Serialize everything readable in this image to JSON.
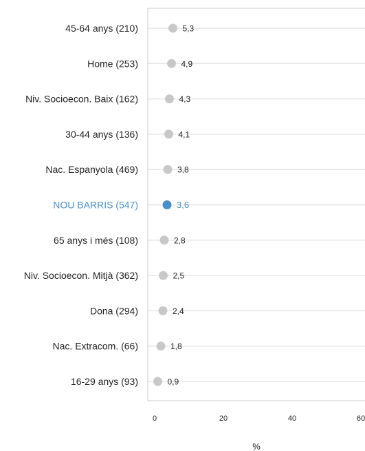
{
  "chart_data": {
    "type": "scatter",
    "title": "",
    "xlabel": "%",
    "xlim": [
      -2,
      62
    ],
    "xticks": [
      "0",
      "20",
      "40",
      "60"
    ],
    "xtick_values": [
      0,
      20,
      40,
      60
    ],
    "grid": "horizontal rows",
    "colors": {
      "default": "#c8c8c8",
      "highlight": "#4a90c8",
      "frame": "#cccccc",
      "row_line": "#e6e6e6"
    },
    "points": [
      {
        "label": "45-64 anys (210)",
        "value": 5.3,
        "value_label": "5,3",
        "highlight": false
      },
      {
        "label": "Home (253)",
        "value": 4.9,
        "value_label": "4,9",
        "highlight": false
      },
      {
        "label": "Niv. Socioecon. Baix (162)",
        "value": 4.3,
        "value_label": "4,3",
        "highlight": false
      },
      {
        "label": "30-44 anys (136)",
        "value": 4.1,
        "value_label": "4,1",
        "highlight": false
      },
      {
        "label": "Nac. Espanyola (469)",
        "value": 3.8,
        "value_label": "3,8",
        "highlight": false
      },
      {
        "label": "NOU BARRIS (547)",
        "value": 3.6,
        "value_label": "3,6",
        "highlight": true
      },
      {
        "label": "65 anys i més (108)",
        "value": 2.8,
        "value_label": "2,8",
        "highlight": false
      },
      {
        "label": "Niv. Socioecon. Mitjà (362)",
        "value": 2.5,
        "value_label": "2,5",
        "highlight": false
      },
      {
        "label": "Dona (294)",
        "value": 2.4,
        "value_label": "2,4",
        "highlight": false
      },
      {
        "label": "Nac. Extracom. (66)",
        "value": 1.8,
        "value_label": "1,8",
        "highlight": false
      },
      {
        "label": "16-29 anys (93)",
        "value": 0.9,
        "value_label": "0,9",
        "highlight": false
      }
    ]
  }
}
